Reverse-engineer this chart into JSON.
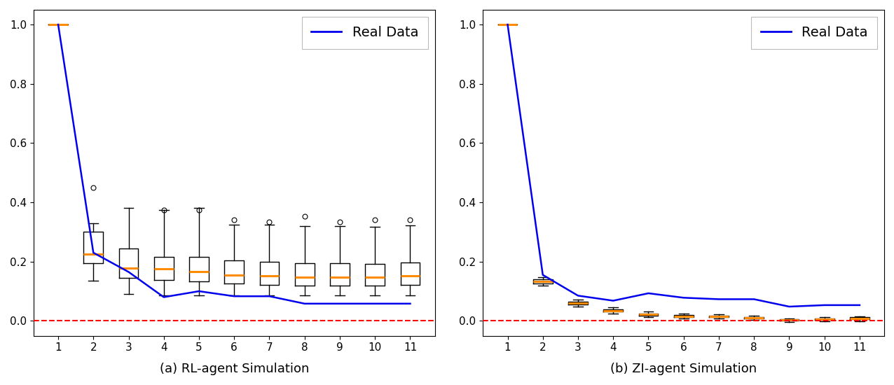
{
  "rl_real_data": [
    1.0,
    0.23,
    0.165,
    0.08,
    0.1,
    0.083,
    0.083,
    0.058,
    0.058,
    0.058,
    0.058
  ],
  "zi_real_data": [
    1.0,
    0.155,
    0.085,
    0.068,
    0.093,
    0.078,
    0.073,
    0.073,
    0.048,
    0.053,
    0.053
  ],
  "lags": [
    1,
    2,
    3,
    4,
    5,
    6,
    7,
    8,
    9,
    10,
    11
  ],
  "rl_boxes": [
    {
      "med": 1.0,
      "q1": 1.0,
      "q3": 1.0,
      "whislo": 1.0,
      "whishi": 1.0,
      "fliers": []
    },
    {
      "med": 0.225,
      "q1": 0.195,
      "q3": 0.3,
      "whislo": 0.135,
      "whishi": 0.33,
      "fliers": [
        0.45
      ]
    },
    {
      "med": 0.178,
      "q1": 0.145,
      "q3": 0.245,
      "whislo": 0.09,
      "whishi": 0.38,
      "fliers": []
    },
    {
      "med": 0.175,
      "q1": 0.138,
      "q3": 0.215,
      "whislo": 0.085,
      "whishi": 0.375,
      "fliers": [
        0.375
      ]
    },
    {
      "med": 0.165,
      "q1": 0.133,
      "q3": 0.215,
      "whislo": 0.085,
      "whishi": 0.38,
      "fliers": [
        0.375
      ]
    },
    {
      "med": 0.155,
      "q1": 0.125,
      "q3": 0.205,
      "whislo": 0.085,
      "whishi": 0.325,
      "fliers": [
        0.34
      ]
    },
    {
      "med": 0.152,
      "q1": 0.122,
      "q3": 0.2,
      "whislo": 0.085,
      "whishi": 0.325,
      "fliers": [
        0.335
      ]
    },
    {
      "med": 0.148,
      "q1": 0.12,
      "q3": 0.195,
      "whislo": 0.085,
      "whishi": 0.32,
      "fliers": [
        0.352
      ]
    },
    {
      "med": 0.148,
      "q1": 0.12,
      "q3": 0.195,
      "whislo": 0.085,
      "whishi": 0.32,
      "fliers": [
        0.335
      ]
    },
    {
      "med": 0.148,
      "q1": 0.12,
      "q3": 0.192,
      "whislo": 0.085,
      "whishi": 0.318,
      "fliers": [
        0.34
      ]
    },
    {
      "med": 0.152,
      "q1": 0.122,
      "q3": 0.197,
      "whislo": 0.085,
      "whishi": 0.322,
      "fliers": [
        0.34
      ]
    }
  ],
  "zi_boxes": [
    {
      "med": 1.0,
      "q1": 1.0,
      "q3": 1.0,
      "whislo": 1.0,
      "whishi": 1.0,
      "fliers": []
    },
    {
      "med": 0.133,
      "q1": 0.127,
      "q3": 0.139,
      "whislo": 0.119,
      "whishi": 0.147,
      "fliers": []
    },
    {
      "med": 0.06,
      "q1": 0.0555,
      "q3": 0.0645,
      "whislo": 0.048,
      "whishi": 0.072,
      "fliers": []
    },
    {
      "med": 0.035,
      "q1": 0.031,
      "q3": 0.039,
      "whislo": 0.024,
      "whishi": 0.046,
      "fliers": []
    },
    {
      "med": 0.022,
      "q1": 0.0185,
      "q3": 0.0255,
      "whislo": 0.013,
      "whishi": 0.031,
      "fliers": []
    },
    {
      "med": 0.016,
      "q1": 0.013,
      "q3": 0.019,
      "whislo": 0.008,
      "whishi": 0.024,
      "fliers": []
    },
    {
      "med": 0.015,
      "q1": 0.012,
      "q3": 0.018,
      "whislo": 0.007,
      "whishi": 0.023,
      "fliers": []
    },
    {
      "med": 0.01,
      "q1": 0.0075,
      "q3": 0.0125,
      "whislo": 0.003,
      "whishi": 0.017,
      "fliers": []
    },
    {
      "med": 0.003,
      "q1": 0.001,
      "q3": 0.005,
      "whislo": -0.003,
      "whishi": 0.009,
      "fliers": []
    },
    {
      "med": 0.005,
      "q1": 0.002,
      "q3": 0.008,
      "whislo": -0.002,
      "whishi": 0.012,
      "fliers": []
    },
    {
      "med": 0.008,
      "q1": 0.0045,
      "q3": 0.0115,
      "whislo": -0.001,
      "whishi": 0.016,
      "fliers": []
    }
  ],
  "ylim": [
    -0.05,
    1.05
  ],
  "yticks": [
    0.0,
    0.2,
    0.4,
    0.6,
    0.8,
    1.0
  ],
  "real_data_color": "#0000EE",
  "median_color": "#FF8C00",
  "dashed_line_color": "red",
  "label_a": "(a) RL-agent Simulation",
  "label_b": "(b) ZI-agent Simulation",
  "legend_label": "Real Data",
  "tick_fontsize": 11,
  "xlabel_fontsize": 13,
  "legend_fontsize": 14,
  "box_width": 0.55
}
